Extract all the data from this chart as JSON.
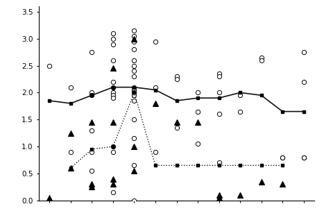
{
  "xlim": [
    0.5,
    13.5
  ],
  "ylim": [
    0,
    3.6
  ],
  "yticks": [
    0,
    0.5,
    1.0,
    1.5,
    2.0,
    2.5,
    3.0,
    3.5
  ],
  "figsize": [
    4.67,
    3.04
  ],
  "dpi": 100,
  "background_color": "#ffffff",
  "open_circles": [
    [
      1,
      2.5
    ],
    [
      2,
      2.1
    ],
    [
      2,
      0.9
    ],
    [
      3,
      2.75
    ],
    [
      3,
      2.0
    ],
    [
      3,
      1.95
    ],
    [
      3,
      1.3
    ],
    [
      3,
      0.9
    ],
    [
      3,
      0.55
    ],
    [
      4,
      3.1
    ],
    [
      4,
      3.0
    ],
    [
      4,
      2.9
    ],
    [
      4,
      2.6
    ],
    [
      4,
      2.2
    ],
    [
      4,
      2.1
    ],
    [
      4,
      2.0
    ],
    [
      4,
      1.95
    ],
    [
      4,
      1.9
    ],
    [
      4,
      1.0
    ],
    [
      4,
      0.9
    ],
    [
      4,
      0.15
    ],
    [
      5,
      3.15
    ],
    [
      5,
      3.05
    ],
    [
      5,
      2.95
    ],
    [
      5,
      2.8
    ],
    [
      5,
      2.6
    ],
    [
      5,
      2.5
    ],
    [
      5,
      2.4
    ],
    [
      5,
      2.3
    ],
    [
      5,
      2.1
    ],
    [
      5,
      2.05
    ],
    [
      5,
      2.0
    ],
    [
      5,
      1.95
    ],
    [
      5,
      1.85
    ],
    [
      5,
      1.5
    ],
    [
      5,
      1.15
    ],
    [
      5,
      0.65
    ],
    [
      5,
      0.0
    ],
    [
      6,
      2.95
    ],
    [
      6,
      2.1
    ],
    [
      6,
      0.9
    ],
    [
      7,
      2.3
    ],
    [
      7,
      2.25
    ],
    [
      7,
      1.35
    ],
    [
      8,
      2.0
    ],
    [
      8,
      1.65
    ],
    [
      8,
      1.05
    ],
    [
      9,
      2.35
    ],
    [
      9,
      2.3
    ],
    [
      9,
      2.0
    ],
    [
      9,
      1.6
    ],
    [
      9,
      0.7
    ],
    [
      10,
      1.95
    ],
    [
      10,
      1.65
    ],
    [
      11,
      2.65
    ],
    [
      11,
      2.6
    ],
    [
      12,
      0.8
    ],
    [
      12,
      0.8
    ],
    [
      13,
      2.75
    ],
    [
      13,
      2.2
    ],
    [
      13,
      0.8
    ],
    [
      13,
      0.8
    ]
  ],
  "filled_triangles": [
    [
      1,
      0.05
    ],
    [
      2,
      1.25
    ],
    [
      2,
      0.6
    ],
    [
      3,
      1.45
    ],
    [
      3,
      0.3
    ],
    [
      3,
      0.25
    ],
    [
      4,
      2.45
    ],
    [
      4,
      1.45
    ],
    [
      4,
      0.4
    ],
    [
      4,
      0.3
    ],
    [
      5,
      3.0
    ],
    [
      5,
      1.0
    ],
    [
      5,
      0.55
    ],
    [
      6,
      1.8
    ],
    [
      7,
      1.45
    ],
    [
      8,
      1.45
    ],
    [
      9,
      0.1
    ],
    [
      9,
      0.05
    ],
    [
      10,
      0.1
    ],
    [
      11,
      0.35
    ],
    [
      12,
      0.3
    ]
  ],
  "solid_line_x": [
    1,
    2,
    3,
    4,
    5,
    6,
    7,
    8,
    9,
    10,
    11,
    12,
    13
  ],
  "solid_line_y": [
    1.85,
    1.8,
    1.95,
    2.1,
    2.1,
    2.05,
    1.85,
    1.9,
    1.9,
    2.0,
    1.95,
    1.65,
    1.65
  ],
  "dashed_line_x": [
    2,
    3,
    4,
    5,
    6,
    7,
    8,
    9,
    10,
    11,
    12
  ],
  "dashed_line_y": [
    0.6,
    0.95,
    1.0,
    2.0,
    0.65,
    0.65,
    0.65,
    0.65,
    0.65,
    0.65,
    0.65
  ],
  "line_color": "#111111"
}
